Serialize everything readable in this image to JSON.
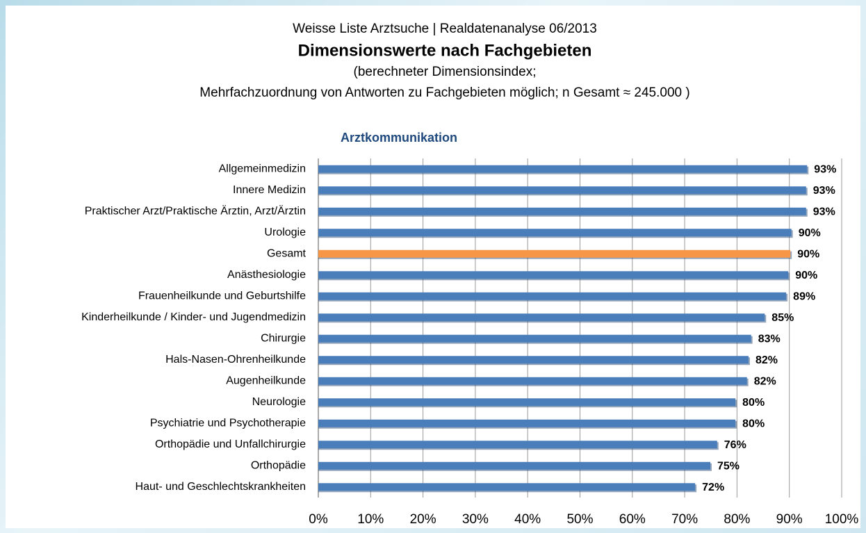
{
  "chart_data": {
    "type": "bar",
    "orientation": "horizontal",
    "supertitle": "Weisse Liste Arztsuche | Realdatenanalyse 06/2013",
    "title": "Dimensionswerte nach Fachgebieten",
    "subtitle": [
      "(berechneter Dimensionsindex;",
      "Mehrfachzuordnung von Antworten zu Fachgebieten möglich; n Gesamt ≈ 245.000 )"
    ],
    "chart_title": "Arztkommunikation",
    "categories": [
      "Allgemeinmedizin",
      "Innere Medizin",
      "Praktischer Arzt/Praktische Ärztin, Arzt/Ärztin",
      "Urologie",
      "Gesamt",
      "Anästhesiologie",
      "Frauenheilkunde und Geburtshilfe",
      "Kinderheilkunde / Kinder- und Jugendmedizin",
      "Chirurgie",
      "Hals-Nasen-Ohrenheilkunde",
      "Augenheilkunde",
      "Neurologie",
      "Psychiatrie und Psychotherapie",
      "Orthopädie und Unfallchirurgie",
      "Orthopädie",
      "Haut- und Geschlechtskrankheiten"
    ],
    "values": [
      93.4,
      93.2,
      93.2,
      90.4,
      90.2,
      89.8,
      89.4,
      85.3,
      82.7,
      82.2,
      81.9,
      79.7,
      79.7,
      76.2,
      74.9,
      72.0
    ],
    "value_labels": [
      "93%",
      "93%",
      "93%",
      "90%",
      "90%",
      "90%",
      "89%",
      "85%",
      "83%",
      "82%",
      "82%",
      "80%",
      "80%",
      "76%",
      "75%",
      "72%"
    ],
    "colors": [
      "#4a7ebb",
      "#4a7ebb",
      "#4a7ebb",
      "#4a7ebb",
      "#f79646",
      "#4a7ebb",
      "#4a7ebb",
      "#4a7ebb",
      "#4a7ebb",
      "#4a7ebb",
      "#4a7ebb",
      "#4a7ebb",
      "#4a7ebb",
      "#4a7ebb",
      "#4a7ebb",
      "#4a7ebb"
    ],
    "xlim": [
      0,
      100
    ],
    "xticks": [
      {
        "value": 0,
        "label": "0%"
      },
      {
        "value": 10,
        "label": "10%"
      },
      {
        "value": 20,
        "label": "20%"
      },
      {
        "value": 30,
        "label": "30%"
      },
      {
        "value": 40,
        "label": "40%"
      },
      {
        "value": 50,
        "label": "50%"
      },
      {
        "value": 60,
        "label": "60%"
      },
      {
        "value": 70,
        "label": "70%"
      },
      {
        "value": 80,
        "label": "80%"
      },
      {
        "value": 90,
        "label": "90%"
      },
      {
        "value": 100,
        "label": "100%"
      }
    ],
    "grid": true
  }
}
